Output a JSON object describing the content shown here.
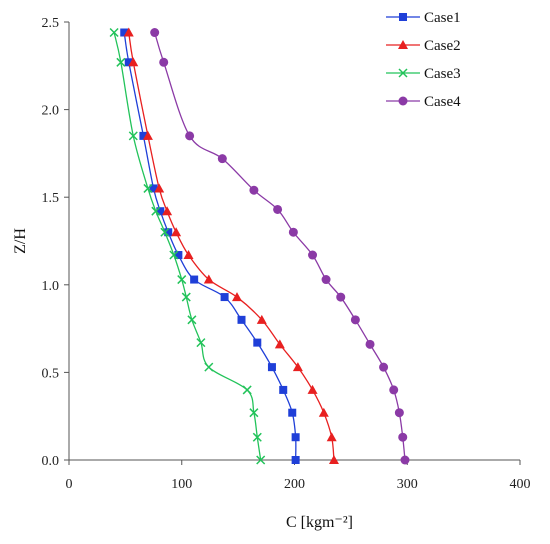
{
  "chart_data": {
    "type": "line",
    "xlabel": "C [kgm⁻²]",
    "ylabel": "Z/H",
    "xlim": [
      0,
      400
    ],
    "ylim": [
      0,
      2.5
    ],
    "xticks": [
      0,
      100,
      200,
      300,
      400
    ],
    "yticks": [
      0.0,
      0.5,
      1.0,
      1.5,
      2.0,
      2.5
    ],
    "xtick_labels": [
      "0",
      "100",
      "200",
      "300",
      "400"
    ],
    "ytick_labels": [
      "0.0",
      "0.5",
      "1.0",
      "1.5",
      "2.0",
      "2.5"
    ],
    "grid": false,
    "legend_position": "top-right",
    "series": [
      {
        "name": "Case1",
        "color": "#1f3fd8",
        "marker": "square",
        "points": [
          [
            201,
            0.0
          ],
          [
            201,
            0.13
          ],
          [
            198,
            0.27
          ],
          [
            190,
            0.4
          ],
          [
            180,
            0.53
          ],
          [
            167,
            0.67
          ],
          [
            153,
            0.8
          ],
          [
            138,
            0.93
          ],
          [
            111,
            1.03
          ],
          [
            97,
            1.17
          ],
          [
            88,
            1.3
          ],
          [
            81,
            1.42
          ],
          [
            75,
            1.55
          ],
          [
            66,
            1.85
          ],
          [
            53,
            2.27
          ],
          [
            49,
            2.44
          ]
        ]
      },
      {
        "name": "Case2",
        "color": "#e82020",
        "marker": "triangle",
        "points": [
          [
            235,
            0.0
          ],
          [
            233,
            0.13
          ],
          [
            226,
            0.27
          ],
          [
            216,
            0.4
          ],
          [
            203,
            0.53
          ],
          [
            187,
            0.66
          ],
          [
            171,
            0.8
          ],
          [
            149,
            0.93
          ],
          [
            124,
            1.03
          ],
          [
            106,
            1.17
          ],
          [
            95,
            1.3
          ],
          [
            87,
            1.42
          ],
          [
            80,
            1.55
          ],
          [
            70,
            1.85
          ],
          [
            57,
            2.27
          ],
          [
            53,
            2.44
          ]
        ]
      },
      {
        "name": "Case3",
        "color": "#22c35a",
        "marker": "x",
        "points": [
          [
            170,
            0.0
          ],
          [
            167,
            0.13
          ],
          [
            164,
            0.27
          ],
          [
            158,
            0.4
          ],
          [
            124,
            0.53
          ],
          [
            117,
            0.67
          ],
          [
            109,
            0.8
          ],
          [
            104,
            0.93
          ],
          [
            100,
            1.03
          ],
          [
            93,
            1.17
          ],
          [
            85,
            1.3
          ],
          [
            77,
            1.42
          ],
          [
            70,
            1.55
          ],
          [
            57,
            1.85
          ],
          [
            46,
            2.27
          ],
          [
            40,
            2.44
          ]
        ]
      },
      {
        "name": "Case4",
        "color": "#8b3aa6",
        "marker": "circle",
        "points": [
          [
            298,
            0.0
          ],
          [
            296,
            0.13
          ],
          [
            293,
            0.27
          ],
          [
            288,
            0.4
          ],
          [
            279,
            0.53
          ],
          [
            267,
            0.66
          ],
          [
            254,
            0.8
          ],
          [
            241,
            0.93
          ],
          [
            228,
            1.03
          ],
          [
            216,
            1.17
          ],
          [
            199,
            1.3
          ],
          [
            185,
            1.43
          ],
          [
            164,
            1.54
          ],
          [
            136,
            1.72
          ],
          [
            107,
            1.85
          ],
          [
            84,
            2.27
          ],
          [
            76,
            2.44
          ]
        ]
      }
    ]
  }
}
